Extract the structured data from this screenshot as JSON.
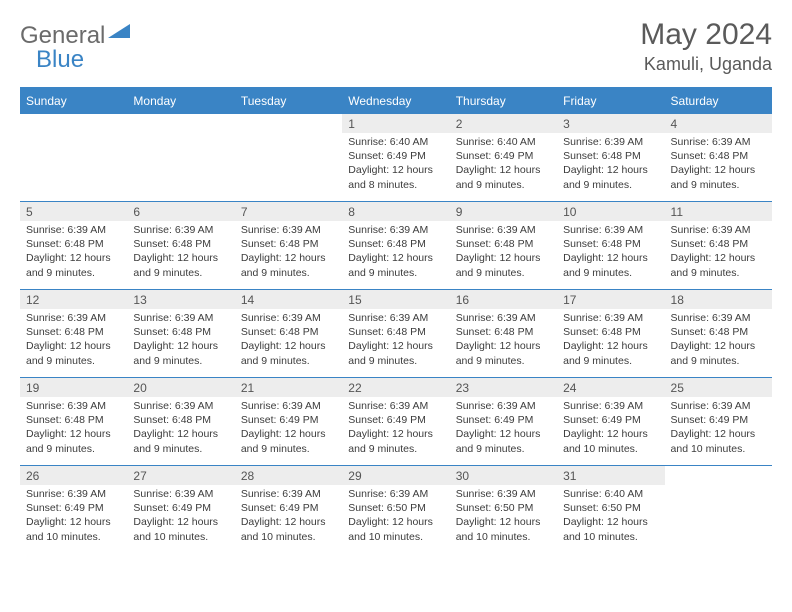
{
  "logo": {
    "part1": "General",
    "part2": "Blue"
  },
  "title": "May 2024",
  "location": "Kamuli, Uganda",
  "colors": {
    "accent": "#3a84c5",
    "header_text": "#ffffff",
    "daynum_bg": "#ededed",
    "text": "#3c3c3c",
    "title_text": "#5a5a5a",
    "logo_gray": "#6b6b6b"
  },
  "day_headers": [
    "Sunday",
    "Monday",
    "Tuesday",
    "Wednesday",
    "Thursday",
    "Friday",
    "Saturday"
  ],
  "weeks": [
    [
      {
        "n": "",
        "sr": "",
        "ss": "",
        "dl": ""
      },
      {
        "n": "",
        "sr": "",
        "ss": "",
        "dl": ""
      },
      {
        "n": "",
        "sr": "",
        "ss": "",
        "dl": ""
      },
      {
        "n": "1",
        "sr": "Sunrise: 6:40 AM",
        "ss": "Sunset: 6:49 PM",
        "dl": "Daylight: 12 hours and 8 minutes."
      },
      {
        "n": "2",
        "sr": "Sunrise: 6:40 AM",
        "ss": "Sunset: 6:49 PM",
        "dl": "Daylight: 12 hours and 9 minutes."
      },
      {
        "n": "3",
        "sr": "Sunrise: 6:39 AM",
        "ss": "Sunset: 6:48 PM",
        "dl": "Daylight: 12 hours and 9 minutes."
      },
      {
        "n": "4",
        "sr": "Sunrise: 6:39 AM",
        "ss": "Sunset: 6:48 PM",
        "dl": "Daylight: 12 hours and 9 minutes."
      }
    ],
    [
      {
        "n": "5",
        "sr": "Sunrise: 6:39 AM",
        "ss": "Sunset: 6:48 PM",
        "dl": "Daylight: 12 hours and 9 minutes."
      },
      {
        "n": "6",
        "sr": "Sunrise: 6:39 AM",
        "ss": "Sunset: 6:48 PM",
        "dl": "Daylight: 12 hours and 9 minutes."
      },
      {
        "n": "7",
        "sr": "Sunrise: 6:39 AM",
        "ss": "Sunset: 6:48 PM",
        "dl": "Daylight: 12 hours and 9 minutes."
      },
      {
        "n": "8",
        "sr": "Sunrise: 6:39 AM",
        "ss": "Sunset: 6:48 PM",
        "dl": "Daylight: 12 hours and 9 minutes."
      },
      {
        "n": "9",
        "sr": "Sunrise: 6:39 AM",
        "ss": "Sunset: 6:48 PM",
        "dl": "Daylight: 12 hours and 9 minutes."
      },
      {
        "n": "10",
        "sr": "Sunrise: 6:39 AM",
        "ss": "Sunset: 6:48 PM",
        "dl": "Daylight: 12 hours and 9 minutes."
      },
      {
        "n": "11",
        "sr": "Sunrise: 6:39 AM",
        "ss": "Sunset: 6:48 PM",
        "dl": "Daylight: 12 hours and 9 minutes."
      }
    ],
    [
      {
        "n": "12",
        "sr": "Sunrise: 6:39 AM",
        "ss": "Sunset: 6:48 PM",
        "dl": "Daylight: 12 hours and 9 minutes."
      },
      {
        "n": "13",
        "sr": "Sunrise: 6:39 AM",
        "ss": "Sunset: 6:48 PM",
        "dl": "Daylight: 12 hours and 9 minutes."
      },
      {
        "n": "14",
        "sr": "Sunrise: 6:39 AM",
        "ss": "Sunset: 6:48 PM",
        "dl": "Daylight: 12 hours and 9 minutes."
      },
      {
        "n": "15",
        "sr": "Sunrise: 6:39 AM",
        "ss": "Sunset: 6:48 PM",
        "dl": "Daylight: 12 hours and 9 minutes."
      },
      {
        "n": "16",
        "sr": "Sunrise: 6:39 AM",
        "ss": "Sunset: 6:48 PM",
        "dl": "Daylight: 12 hours and 9 minutes."
      },
      {
        "n": "17",
        "sr": "Sunrise: 6:39 AM",
        "ss": "Sunset: 6:48 PM",
        "dl": "Daylight: 12 hours and 9 minutes."
      },
      {
        "n": "18",
        "sr": "Sunrise: 6:39 AM",
        "ss": "Sunset: 6:48 PM",
        "dl": "Daylight: 12 hours and 9 minutes."
      }
    ],
    [
      {
        "n": "19",
        "sr": "Sunrise: 6:39 AM",
        "ss": "Sunset: 6:48 PM",
        "dl": "Daylight: 12 hours and 9 minutes."
      },
      {
        "n": "20",
        "sr": "Sunrise: 6:39 AM",
        "ss": "Sunset: 6:48 PM",
        "dl": "Daylight: 12 hours and 9 minutes."
      },
      {
        "n": "21",
        "sr": "Sunrise: 6:39 AM",
        "ss": "Sunset: 6:49 PM",
        "dl": "Daylight: 12 hours and 9 minutes."
      },
      {
        "n": "22",
        "sr": "Sunrise: 6:39 AM",
        "ss": "Sunset: 6:49 PM",
        "dl": "Daylight: 12 hours and 9 minutes."
      },
      {
        "n": "23",
        "sr": "Sunrise: 6:39 AM",
        "ss": "Sunset: 6:49 PM",
        "dl": "Daylight: 12 hours and 9 minutes."
      },
      {
        "n": "24",
        "sr": "Sunrise: 6:39 AM",
        "ss": "Sunset: 6:49 PM",
        "dl": "Daylight: 12 hours and 10 minutes."
      },
      {
        "n": "25",
        "sr": "Sunrise: 6:39 AM",
        "ss": "Sunset: 6:49 PM",
        "dl": "Daylight: 12 hours and 10 minutes."
      }
    ],
    [
      {
        "n": "26",
        "sr": "Sunrise: 6:39 AM",
        "ss": "Sunset: 6:49 PM",
        "dl": "Daylight: 12 hours and 10 minutes."
      },
      {
        "n": "27",
        "sr": "Sunrise: 6:39 AM",
        "ss": "Sunset: 6:49 PM",
        "dl": "Daylight: 12 hours and 10 minutes."
      },
      {
        "n": "28",
        "sr": "Sunrise: 6:39 AM",
        "ss": "Sunset: 6:49 PM",
        "dl": "Daylight: 12 hours and 10 minutes."
      },
      {
        "n": "29",
        "sr": "Sunrise: 6:39 AM",
        "ss": "Sunset: 6:50 PM",
        "dl": "Daylight: 12 hours and 10 minutes."
      },
      {
        "n": "30",
        "sr": "Sunrise: 6:39 AM",
        "ss": "Sunset: 6:50 PM",
        "dl": "Daylight: 12 hours and 10 minutes."
      },
      {
        "n": "31",
        "sr": "Sunrise: 6:40 AM",
        "ss": "Sunset: 6:50 PM",
        "dl": "Daylight: 12 hours and 10 minutes."
      },
      {
        "n": "",
        "sr": "",
        "ss": "",
        "dl": ""
      }
    ]
  ]
}
